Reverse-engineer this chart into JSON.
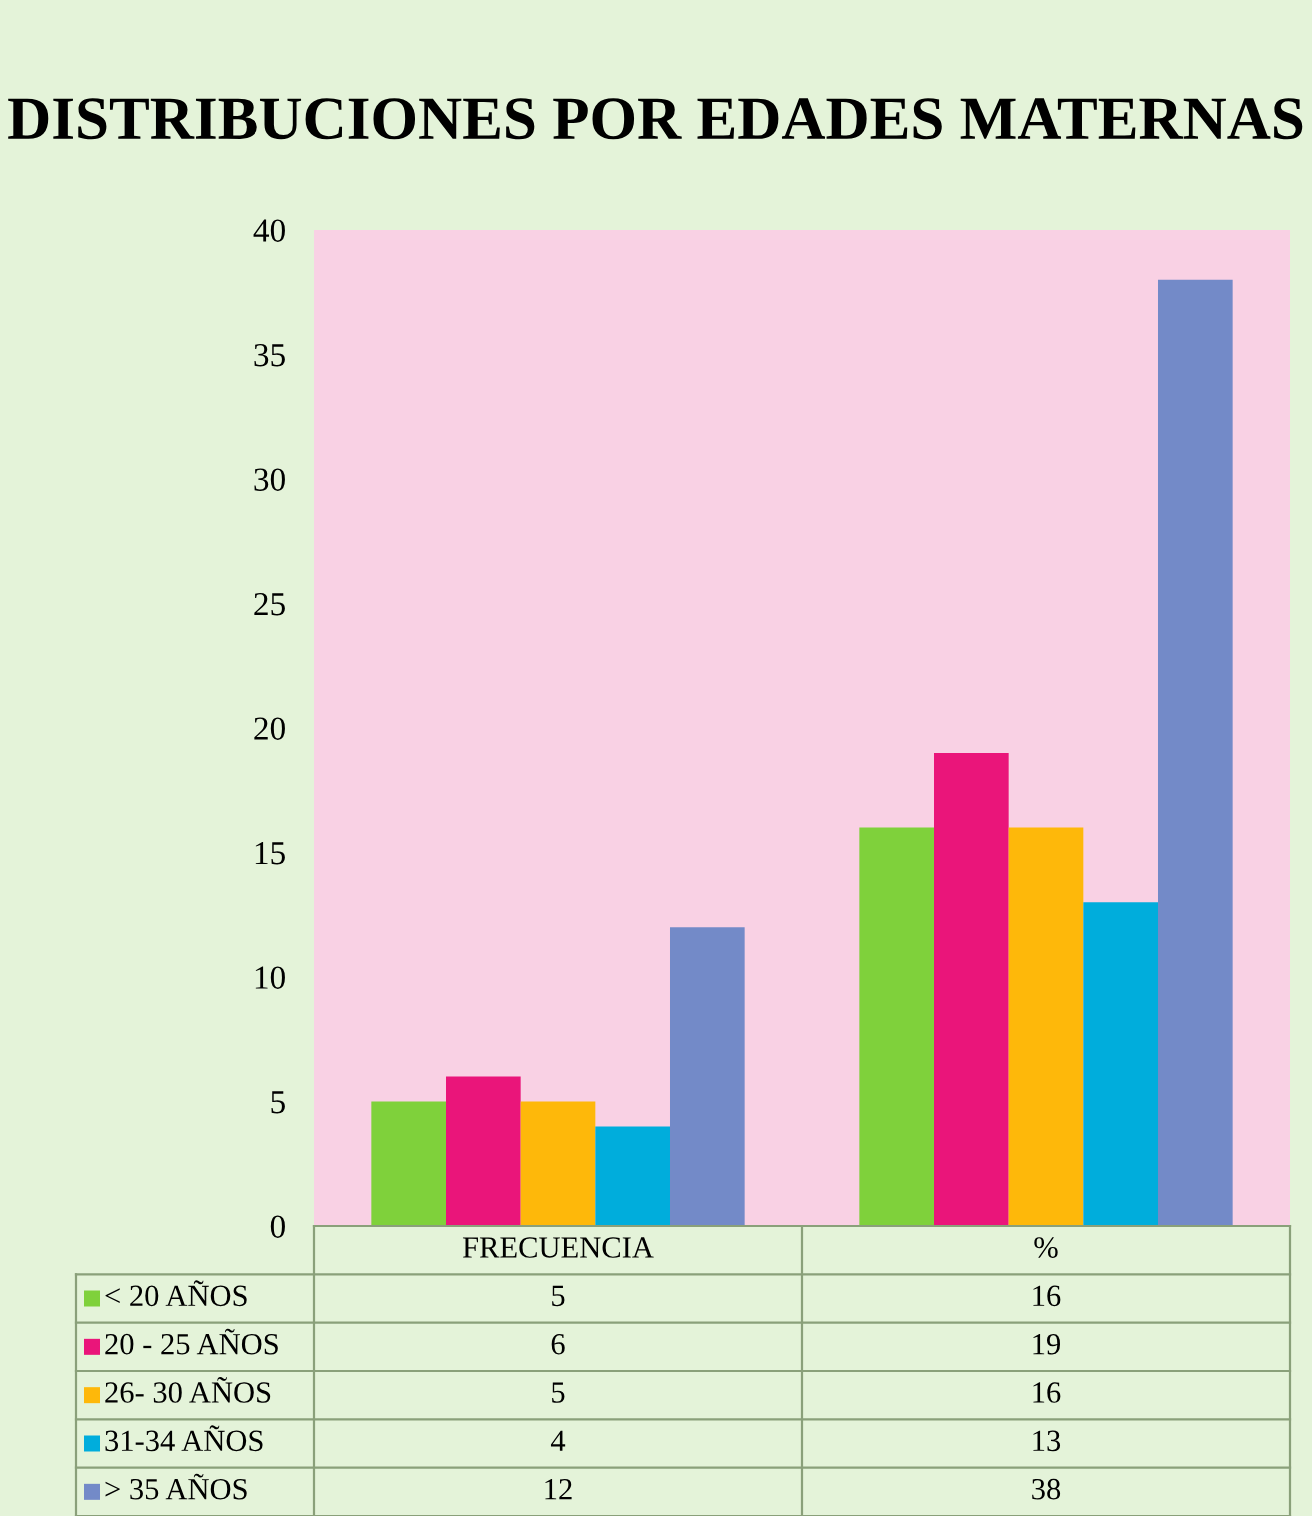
{
  "chart_data": {
    "type": "bar",
    "title": "DISTRIBUCIONES POR EDADES MATERNAS",
    "categories": [
      "FRECUENCIA",
      "%"
    ],
    "series": [
      {
        "name": "< 20 AÑOS",
        "color": "#7fd13b",
        "values": [
          5,
          16
        ]
      },
      {
        "name": "20 - 25 AÑOS",
        "color": "#ea157a",
        "values": [
          6,
          19
        ]
      },
      {
        "name": "26- 30 AÑOS",
        "color": "#feb80a",
        "values": [
          5,
          16
        ]
      },
      {
        "name": "31-34 AÑOS",
        "color": "#00addc",
        "values": [
          4,
          13
        ]
      },
      {
        "name": "> 35 AÑOS",
        "color": "#738ac8",
        "values": [
          12,
          38
        ]
      }
    ],
    "ylim": [
      0,
      40
    ],
    "yticks": [
      0,
      5,
      10,
      15,
      20,
      25,
      30,
      35,
      40
    ],
    "grid": false,
    "data_labels": true,
    "legend": "bottom"
  }
}
